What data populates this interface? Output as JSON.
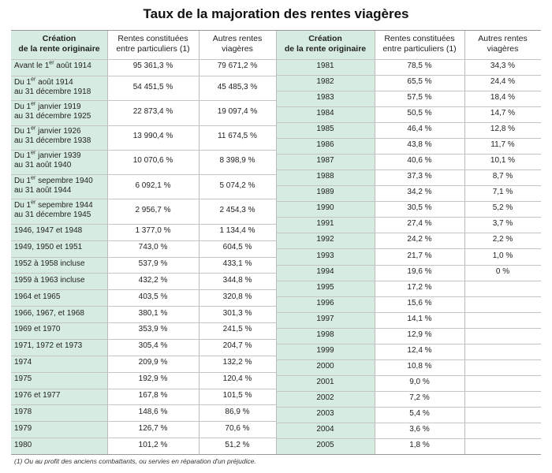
{
  "title": "Taux de la majoration des rentes viagères",
  "headers": {
    "left": {
      "creation": [
        "Création",
        "de la rente originaire"
      ],
      "rentes": [
        "Rentes constituées",
        "entre particuliers (1)"
      ],
      "autres": [
        "Autres rentes",
        "viagères"
      ]
    },
    "right": {
      "creation": [
        "Création",
        "de la rente originaire"
      ],
      "rentes": [
        "Rentes constituées",
        "entre particuliers (1)"
      ],
      "autres": [
        "Autres rentes",
        "viagères"
      ]
    }
  },
  "left_rows": [
    {
      "label": [
        "Avant le 1|er| août 1914"
      ],
      "rentes": "95 361,3 %",
      "autres": "79 671,2 %"
    },
    {
      "label": [
        "Du 1|er| août 1914",
        "au 31 décembre 1918"
      ],
      "rentes": "54 451,5 %",
      "autres": "45 485,3 %"
    },
    {
      "label": [
        "Du 1|er| janvier 1919",
        "au 31 décembre 1925"
      ],
      "rentes": "22 873,4 %",
      "autres": "19 097,4 %"
    },
    {
      "label": [
        "Du 1|er| janvier 1926",
        "au 31 décembre 1938"
      ],
      "rentes": "13 990,4 %",
      "autres": "11 674,5 %"
    },
    {
      "label": [
        "Du 1|er| janvier 1939",
        "au 31 août 1940"
      ],
      "rentes": "10 070,6 %",
      "autres": "8 398,9 %"
    },
    {
      "label": [
        "Du 1|er| sepembre 1940",
        "au 31 août 1944"
      ],
      "rentes": "6 092,1 %",
      "autres": "5 074,2 %"
    },
    {
      "label": [
        "Du 1|er| sepembre 1944",
        "au 31 décembre 1945"
      ],
      "rentes": "2 956,7 %",
      "autres": "2 454,3 %"
    },
    {
      "label": [
        "1946, 1947 et 1948"
      ],
      "rentes": "1 377,0 %",
      "autres": "1 134,4 %"
    },
    {
      "label": [
        "1949, 1950 et 1951"
      ],
      "rentes": "743,0 %",
      "autres": "604,5 %"
    },
    {
      "label": [
        "1952 à 1958 incluse"
      ],
      "rentes": "537,9 %",
      "autres": "433,1 %"
    },
    {
      "label": [
        "1959 à 1963 incluse"
      ],
      "rentes": "432,2 %",
      "autres": "344,8 %"
    },
    {
      "label": [
        "1964 et 1965"
      ],
      "rentes": "403,5 %",
      "autres": "320,8 %"
    },
    {
      "label": [
        "1966, 1967, et 1968"
      ],
      "rentes": "380,1 %",
      "autres": "301,3 %"
    },
    {
      "label": [
        "1969 et 1970"
      ],
      "rentes": "353,9 %",
      "autres": "241,5 %"
    },
    {
      "label": [
        "1971, 1972 et 1973"
      ],
      "rentes": "305,4 %",
      "autres": "204,7 %"
    },
    {
      "label": [
        "1974"
      ],
      "rentes": "209,9 %",
      "autres": "132,2 %"
    },
    {
      "label": [
        "1975"
      ],
      "rentes": "192,9 %",
      "autres": "120,4 %"
    },
    {
      "label": [
        "1976 et 1977"
      ],
      "rentes": "167,8 %",
      "autres": "101,5 %"
    },
    {
      "label": [
        "1978"
      ],
      "rentes": "148,6 %",
      "autres": "86,9 %"
    },
    {
      "label": [
        "1979"
      ],
      "rentes": "126,7 %",
      "autres": "70,6 %"
    },
    {
      "label": [
        "1980"
      ],
      "rentes": "101,2 %",
      "autres": "51,2 %"
    }
  ],
  "right_rows": [
    {
      "label": "1981",
      "rentes": "78,5 %",
      "autres": "34,3 %"
    },
    {
      "label": "1982",
      "rentes": "65,5 %",
      "autres": "24,4 %"
    },
    {
      "label": "1983",
      "rentes": "57,5 %",
      "autres": "18,4 %"
    },
    {
      "label": "1984",
      "rentes": "50,5 %",
      "autres": "14,7 %"
    },
    {
      "label": "1985",
      "rentes": "46,4 %",
      "autres": "12,8 %"
    },
    {
      "label": "1986",
      "rentes": "43,8 %",
      "autres": "11,7 %"
    },
    {
      "label": "1987",
      "rentes": "40,6 %",
      "autres": "10,1 %"
    },
    {
      "label": "1988",
      "rentes": "37,3 %",
      "autres": "8,7 %"
    },
    {
      "label": "1989",
      "rentes": "34,2 %",
      "autres": "7,1 %"
    },
    {
      "label": "1990",
      "rentes": "30,5 %",
      "autres": "5,2 %"
    },
    {
      "label": "1991",
      "rentes": "27,4 %",
      "autres": "3,7 %"
    },
    {
      "label": "1992",
      "rentes": "24,2 %",
      "autres": "2,2 %"
    },
    {
      "label": "1993",
      "rentes": "21,7 %",
      "autres": "1,0 %"
    },
    {
      "label": "1994",
      "rentes": "19,6 %",
      "autres": "0 %"
    },
    {
      "label": "1995",
      "rentes": "17,2 %",
      "autres": ""
    },
    {
      "label": "1996",
      "rentes": "15,6 %",
      "autres": ""
    },
    {
      "label": "1997",
      "rentes": "14,1 %",
      "autres": ""
    },
    {
      "label": "1998",
      "rentes": "12,9 %",
      "autres": ""
    },
    {
      "label": "1999",
      "rentes": "12,4 %",
      "autres": ""
    },
    {
      "label": "2000",
      "rentes": "10,8 %",
      "autres": ""
    },
    {
      "label": "2001",
      "rentes": "9,0 %",
      "autres": ""
    },
    {
      "label": "2002",
      "rentes": "7,2 %",
      "autres": ""
    },
    {
      "label": "2003",
      "rentes": "5,4 %",
      "autres": ""
    },
    {
      "label": "2004",
      "rentes": "3,6 %",
      "autres": ""
    },
    {
      "label": "2005",
      "rentes": "1,8 %",
      "autres": ""
    }
  ],
  "footnote": "(1) Ou au profit des anciens combattants, ou servies en réparation d'un préjudice.",
  "colors": {
    "shaded_column": "#d7ece0",
    "rule": "#c5c5c5"
  }
}
